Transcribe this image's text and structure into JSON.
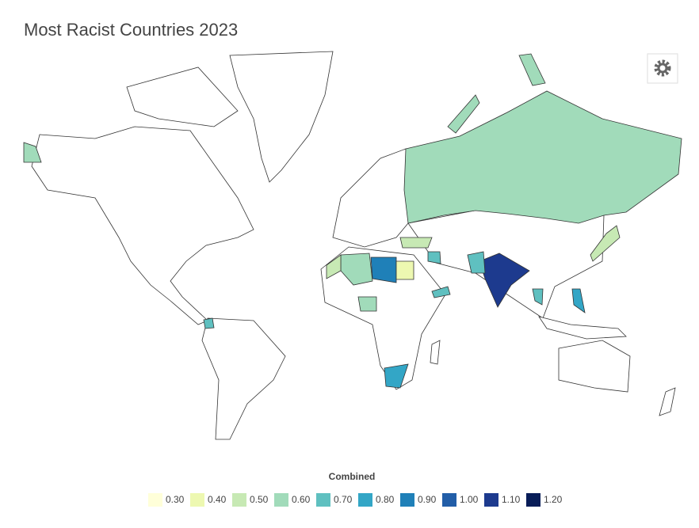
{
  "header": {
    "title": "Most Racist Countries 2023"
  },
  "legend": {
    "title": "Combined",
    "items": [
      {
        "value": 0.3,
        "label": "0.30",
        "color": "#ffffd9"
      },
      {
        "value": 0.4,
        "label": "0.40",
        "color": "#edf8b1"
      },
      {
        "value": 0.5,
        "label": "0.50",
        "color": "#c7e9b4"
      },
      {
        "value": 0.6,
        "label": "0.60",
        "color": "#a1dbba"
      },
      {
        "value": 0.7,
        "label": "0.70",
        "color": "#5fc0c0"
      },
      {
        "value": 0.8,
        "label": "0.80",
        "color": "#33a6c6"
      },
      {
        "value": 0.9,
        "label": "0.90",
        "color": "#1f80b8"
      },
      {
        "value": 1.0,
        "label": "1.00",
        "color": "#225ea8"
      },
      {
        "value": 1.1,
        "label": "1.10",
        "color": "#1d3a8e"
      },
      {
        "value": 1.2,
        "label": "1.20",
        "color": "#081d58"
      }
    ]
  }
}
